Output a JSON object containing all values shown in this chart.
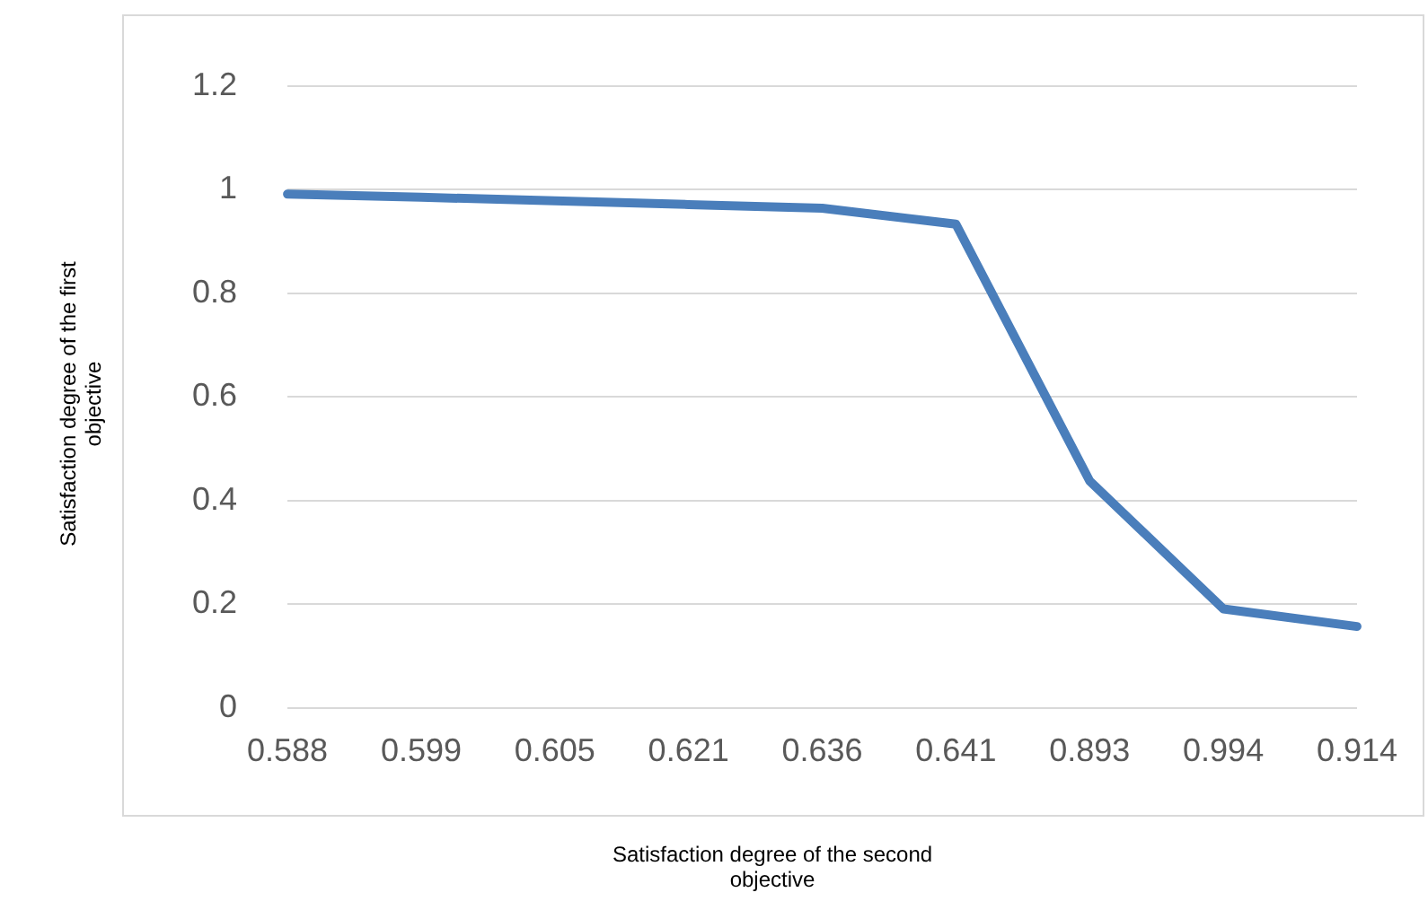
{
  "chart_data": {
    "type": "line",
    "xlabel": "Satisfaction degree of the second objective",
    "ylabel": "Satisfaction degree of the first objective",
    "categories": [
      "0.588",
      "0.599",
      "0.605",
      "0.621",
      "0.636",
      "0.641",
      "0.893",
      "0.994",
      "0.914"
    ],
    "series": [
      {
        "color": "#4a7ebb",
        "values": [
          0.991,
          0.985,
          0.978,
          0.971,
          0.964,
          0.933,
          0.438,
          0.191,
          0.157
        ]
      }
    ],
    "ylim": [
      0,
      1.2
    ],
    "yticks": [
      0,
      0.2,
      0.4,
      0.6,
      0.8,
      1,
      1.2
    ],
    "grid": "y",
    "legend": false,
    "marker": "none",
    "line_style": "solid"
  }
}
